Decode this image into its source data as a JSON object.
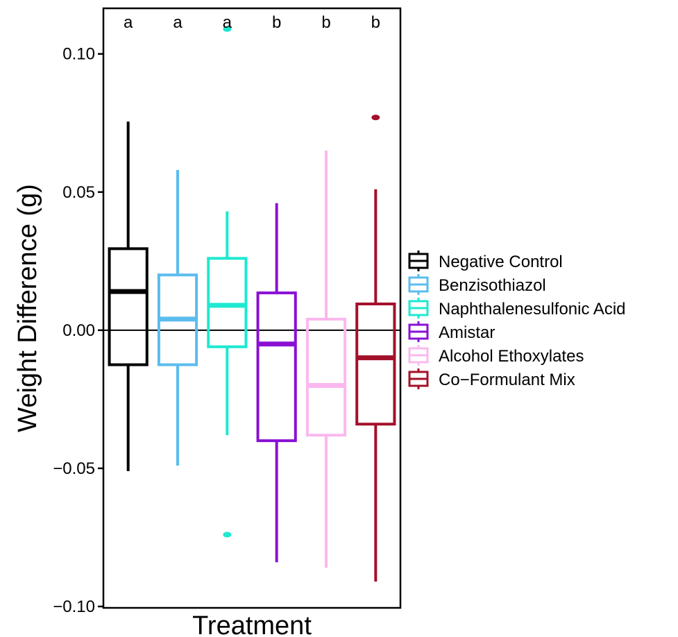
{
  "chart_data": {
    "type": "boxplot",
    "xlabel": "Treatment",
    "ylabel": "Weight Difference (g)",
    "ylim": [
      -0.1005,
      0.1165
    ],
    "yticks": [
      -0.1,
      -0.05,
      0.0,
      0.05,
      0.1
    ],
    "ytick_labels": [
      "−0.10",
      "−0.05",
      "0.00",
      "0.05",
      "0.10"
    ],
    "reference_line": 0.0,
    "legend_position": "right",
    "series": [
      {
        "name": "Negative Control",
        "color": "#000000",
        "letter": "a",
        "whisker_low": -0.051,
        "q1": -0.0125,
        "median": 0.014,
        "q3": 0.0295,
        "whisker_high": 0.0755,
        "outliers": []
      },
      {
        "name": "Benzisothiazol",
        "color": "#5bbcee",
        "letter": "a",
        "whisker_low": -0.049,
        "q1": -0.0125,
        "median": 0.004,
        "q3": 0.02,
        "whisker_high": 0.058,
        "outliers": []
      },
      {
        "name": "Naphthalenesulfonic Acid",
        "color": "#1de9d0",
        "letter": "a",
        "whisker_low": -0.038,
        "q1": -0.006,
        "median": 0.009,
        "q3": 0.026,
        "whisker_high": 0.043,
        "outliers": [
          0.109,
          -0.074
        ]
      },
      {
        "name": "Amistar",
        "color": "#8a10d4",
        "letter": "b",
        "whisker_low": -0.084,
        "q1": -0.04,
        "median": -0.005,
        "q3": 0.0135,
        "whisker_high": 0.046,
        "outliers": []
      },
      {
        "name": "Alcohol Ethoxylates",
        "color": "#fbb8ef",
        "letter": "b",
        "whisker_low": -0.086,
        "q1": -0.038,
        "median": -0.02,
        "q3": 0.004,
        "whisker_high": 0.065,
        "outliers": []
      },
      {
        "name": "Co−Formulant Mix",
        "color": "#a3102a",
        "letter": "b",
        "whisker_low": -0.091,
        "q1": -0.034,
        "median": -0.01,
        "q3": 0.0095,
        "whisker_high": 0.051,
        "outliers": [
          0.077
        ]
      }
    ]
  }
}
